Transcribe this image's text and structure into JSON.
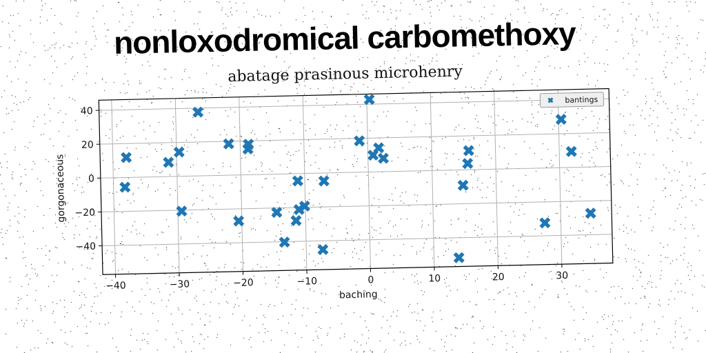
{
  "page": {
    "title": "nonloxodromical carbomethoxy"
  },
  "chart_data": {
    "type": "scatter",
    "title": "abatage prasinous microhenry",
    "xlabel": "baching",
    "ylabel": "gorgonaceous",
    "xlim": [
      -42,
      38
    ],
    "ylim": [
      -57,
      46
    ],
    "xticks": [
      -40,
      -30,
      -20,
      -10,
      0,
      10,
      20,
      30
    ],
    "yticks": [
      -40,
      -20,
      0,
      20,
      40
    ],
    "grid": true,
    "legend_position": "top-right",
    "series": [
      {
        "name": "bantings",
        "color": "#1f77b4",
        "marker": "X",
        "points": [
          [
            -37.9,
            11.8
          ],
          [
            -38.2,
            -5.7
          ],
          [
            -31.3,
            8.4
          ],
          [
            -29.6,
            14.3
          ],
          [
            -29.4,
            -20.6
          ],
          [
            -26.5,
            37.6
          ],
          [
            -21.8,
            18.5
          ],
          [
            -20.5,
            -27.2
          ],
          [
            -18.7,
            18.0
          ],
          [
            -18.8,
            15.2
          ],
          [
            -14.5,
            -22.6
          ],
          [
            -13.4,
            -40.3
          ],
          [
            -11.5,
            -27.7
          ],
          [
            -11.1,
            -4.3
          ],
          [
            -11.0,
            -21.2
          ],
          [
            -10.1,
            -19.3
          ],
          [
            -7.0,
            -4.7
          ],
          [
            -7.4,
            -45.2
          ],
          [
            -1.3,
            18.5
          ],
          [
            0.4,
            42.8
          ],
          [
            0.8,
            9.9
          ],
          [
            1.7,
            14.1
          ],
          [
            2.4,
            7.9
          ],
          [
            13.9,
            -51.8
          ],
          [
            14.8,
            -9.1
          ],
          [
            15.6,
            3.7
          ],
          [
            15.8,
            11.3
          ],
          [
            27.5,
            -32.4
          ],
          [
            30.4,
            28.5
          ],
          [
            31.9,
            9.4
          ],
          [
            34.7,
            -27.3
          ]
        ]
      }
    ]
  }
}
